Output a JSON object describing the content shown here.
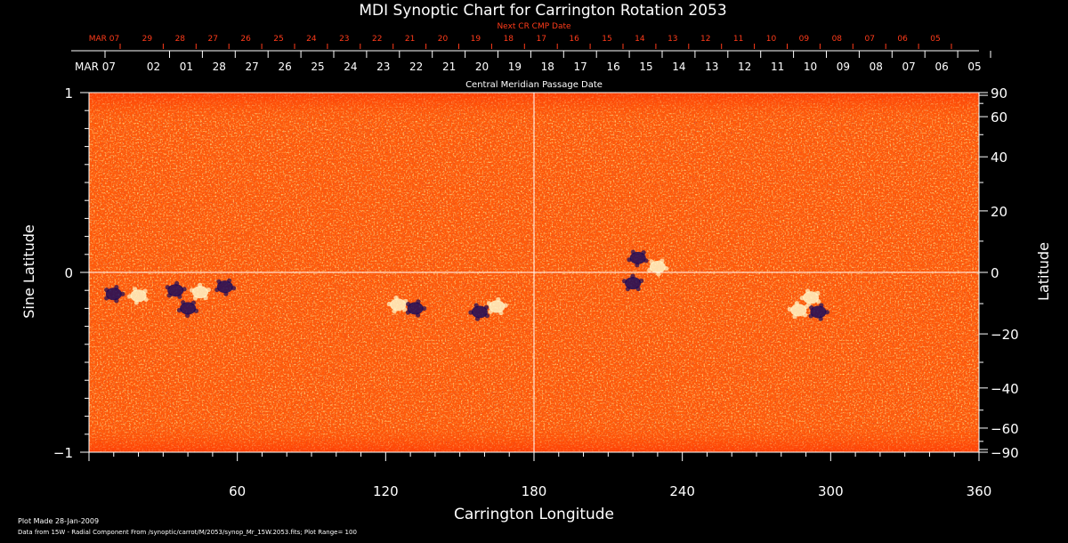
{
  "chart_data": {
    "type": "heatmap",
    "title": "MDI Synoptic Chart for Carrington Rotation 2053",
    "xlabel": "Carrington Longitude",
    "ylabel_left": "Sine Latitude",
    "ylabel_right": "Latitude",
    "xlim": [
      0,
      360
    ],
    "ylim": [
      -1,
      1
    ],
    "x_ticks": [
      "60",
      "120",
      "180",
      "240",
      "300",
      "360"
    ],
    "y_ticks_left": [
      "1",
      "0",
      "−1"
    ],
    "y_ticks_right": [
      "90",
      "60",
      "40",
      "20",
      "0",
      "−20",
      "−40",
      "−60",
      "−90"
    ],
    "top_axis_label": "Central Meridian Passage Date",
    "top_axis_ticks": [
      "MAR 07",
      "02",
      "01",
      "28",
      "27",
      "26",
      "25",
      "24",
      "23",
      "22",
      "21",
      "20",
      "19",
      "18",
      "17",
      "16",
      "15",
      "14",
      "13",
      "12",
      "11",
      "10",
      "09",
      "08",
      "07",
      "06",
      "05"
    ],
    "next_axis_label": "Next CR CMP Date",
    "next_axis_ticks": [
      "MAR 07",
      "29",
      "28",
      "27",
      "26",
      "25",
      "24",
      "23",
      "22",
      "21",
      "20",
      "19",
      "18",
      "17",
      "16",
      "15",
      "14",
      "13",
      "12",
      "11",
      "10",
      "09",
      "08",
      "07",
      "06",
      "05"
    ],
    "guide_lines": {
      "longitude": 180,
      "sine_latitude": 0
    },
    "active_regions": [
      {
        "lon": 10,
        "sinlat": -0.12,
        "polarity": "negative"
      },
      {
        "lon": 20,
        "sinlat": -0.13,
        "polarity": "positive"
      },
      {
        "lon": 35,
        "sinlat": -0.1,
        "polarity": "negative"
      },
      {
        "lon": 40,
        "sinlat": -0.2,
        "polarity": "negative"
      },
      {
        "lon": 45,
        "sinlat": -0.11,
        "polarity": "positive"
      },
      {
        "lon": 55,
        "sinlat": -0.08,
        "polarity": "negative"
      },
      {
        "lon": 125,
        "sinlat": -0.18,
        "polarity": "positive"
      },
      {
        "lon": 132,
        "sinlat": -0.2,
        "polarity": "negative"
      },
      {
        "lon": 158,
        "sinlat": -0.22,
        "polarity": "negative"
      },
      {
        "lon": 165,
        "sinlat": -0.19,
        "polarity": "positive"
      },
      {
        "lon": 222,
        "sinlat": 0.08,
        "polarity": "negative"
      },
      {
        "lon": 220,
        "sinlat": -0.06,
        "polarity": "negative"
      },
      {
        "lon": 230,
        "sinlat": 0.03,
        "polarity": "positive"
      },
      {
        "lon": 287,
        "sinlat": -0.21,
        "polarity": "positive"
      },
      {
        "lon": 295,
        "sinlat": -0.22,
        "polarity": "negative"
      },
      {
        "lon": 292,
        "sinlat": -0.14,
        "polarity": "positive"
      }
    ],
    "colors": {
      "background": "#000000",
      "field_base": "#ff5a0a",
      "positive": "#fff6c8",
      "negative": "#1a0a5a",
      "axis": "#ffffff",
      "secondary_axis": "#ff3b1a"
    }
  },
  "footer": {
    "plot_made": "Plot Made 28-Jan-2009",
    "source": "Data from 15W - Radial Component From /synoptic/carrot/M/2053/synop_Mr_15W.2053.fits; Plot Range= 100"
  }
}
